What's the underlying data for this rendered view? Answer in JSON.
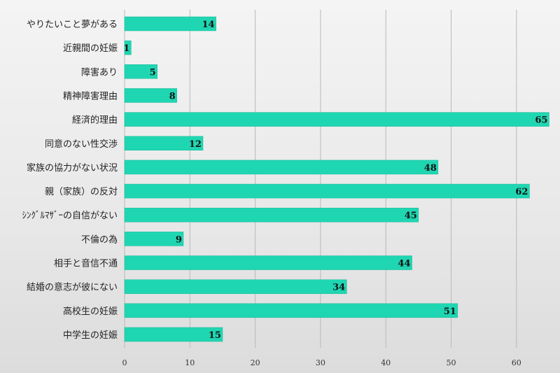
{
  "chart_data": {
    "type": "bar",
    "orientation": "horizontal",
    "title": "",
    "xlabel": "",
    "ylabel": "",
    "xlim": [
      0,
      65
    ],
    "xticks": [
      0,
      10,
      20,
      30,
      40,
      50,
      60
    ],
    "grid": true,
    "bar_color": "#1fd6b2",
    "categories": [
      "やりたいこと夢がある",
      "近親間の妊娠",
      "障害あり",
      "精神障害理由",
      "経済的理由",
      "同意のない性交渉",
      "家族の協力がない状況",
      "親（家族）の反対",
      "ｼﾝｸﾞﾙﾏｻﾞｰの自信がない",
      "不倫の為",
      "相手と音信不通",
      "結婚の意志が彼にない",
      "高校生の妊娠",
      "中学生の妊娠"
    ],
    "values": [
      14,
      1,
      5,
      8,
      65,
      12,
      48,
      62,
      45,
      9,
      44,
      34,
      51,
      15
    ]
  }
}
